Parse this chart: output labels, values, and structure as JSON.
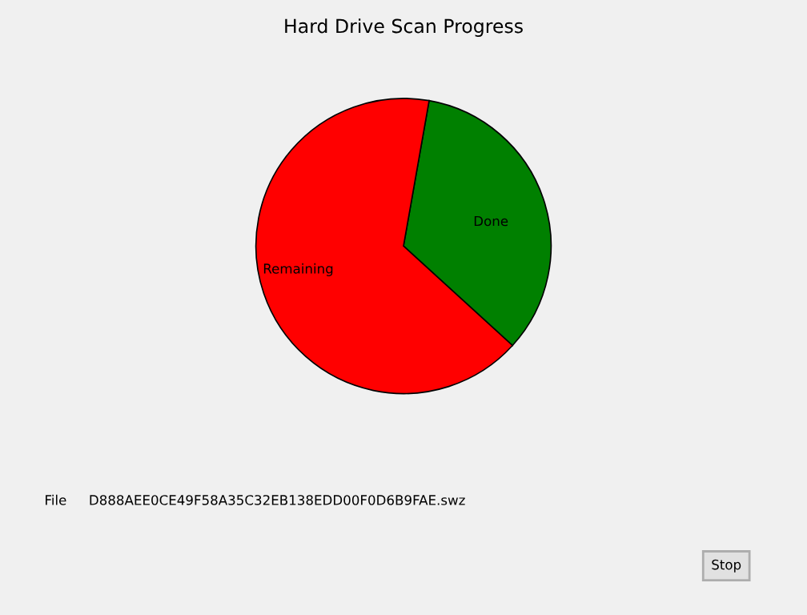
{
  "chart_data": {
    "type": "pie",
    "title": "Hard Drive Scan Progress",
    "categories": [
      "Done",
      "Remaining"
    ],
    "values": [
      34,
      66
    ],
    "colors": [
      "#008000",
      "#ff0000"
    ],
    "annotations": [
      "File",
      "D888AEE0CE49F58A35C32EB138EDD00F0D6B9FAE.swz",
      "Stop"
    ]
  }
}
